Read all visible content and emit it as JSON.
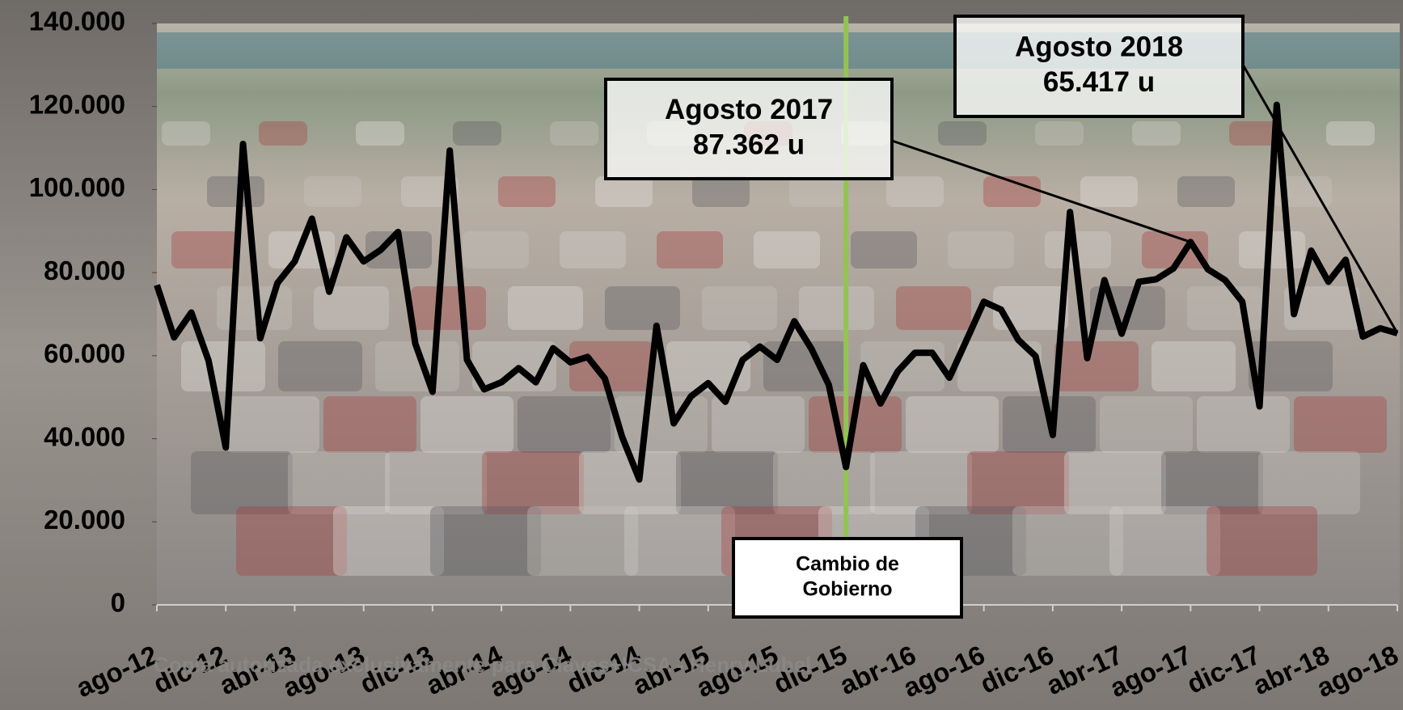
{
  "chart_data": {
    "type": "line",
    "categories": [
      "ago-12",
      null,
      null,
      null,
      "dic-12",
      null,
      null,
      null,
      "abr-13",
      null,
      null,
      null,
      "ago-13",
      null,
      null,
      null,
      "dic-13",
      null,
      null,
      null,
      "abr-14",
      null,
      null,
      null,
      "ago-14",
      null,
      null,
      null,
      "dic-14",
      null,
      null,
      null,
      "abr-15",
      null,
      null,
      null,
      "ago-15",
      null,
      null,
      null,
      "dic-15",
      null,
      null,
      null,
      "abr-16",
      null,
      null,
      null,
      "ago-16",
      null,
      null,
      null,
      "dic-16",
      null,
      null,
      null,
      "abr-17",
      null,
      null,
      null,
      "ago-17",
      null,
      null,
      null,
      "dic-17",
      null,
      null,
      null,
      "abr-18",
      null,
      null,
      null,
      "ago-18"
    ],
    "values": [
      77000,
      64400,
      70400,
      58800,
      37900,
      111000,
      64200,
      77500,
      82700,
      93000,
      75400,
      88500,
      82700,
      85500,
      89800,
      62900,
      51300,
      109400,
      59000,
      51900,
      53600,
      57000,
      53600,
      61800,
      58400,
      59700,
      54500,
      40500,
      30200,
      67200,
      43700,
      50200,
      53400,
      48900,
      59000,
      62200,
      59000,
      68300,
      61600,
      53000,
      33200,
      57700,
      48500,
      56200,
      60700,
      60700,
      54700,
      63800,
      73000,
      71100,
      63800,
      59900,
      40900,
      94600,
      59400,
      78200,
      65300,
      77800,
      78400,
      81000,
      87362,
      80800,
      78200,
      73000,
      47800,
      120400,
      70000,
      85300,
      77800,
      83100,
      64600,
      66600,
      65417
    ],
    "color": "#000000",
    "ylim": [
      0,
      140000
    ],
    "yticks": [
      {
        "value": 0,
        "label": "0"
      },
      {
        "value": 20000,
        "label": "20.000"
      },
      {
        "value": 40000,
        "label": "40.000"
      },
      {
        "value": 60000,
        "label": "60.000"
      },
      {
        "value": 80000,
        "label": "80.000"
      },
      {
        "value": 100000,
        "label": "100.000"
      },
      {
        "value": 120000,
        "label": "120.000"
      },
      {
        "value": 140000,
        "label": "140.000"
      }
    ],
    "marker_color": "#92c353",
    "annotations": [
      {
        "text": [
          "Agosto 2017",
          "87.362 u"
        ],
        "x": "ago-17"
      },
      {
        "text": [
          "Agosto 2018",
          "65.417 u"
        ],
        "x": "ago-18"
      },
      {
        "text": [
          "Cambio de",
          "Gobierno"
        ],
        "x": "dic-15"
      }
    ],
    "watermark": "Copia autorizada exclusivamente para Claves+ICSA - Henry Lubel"
  }
}
